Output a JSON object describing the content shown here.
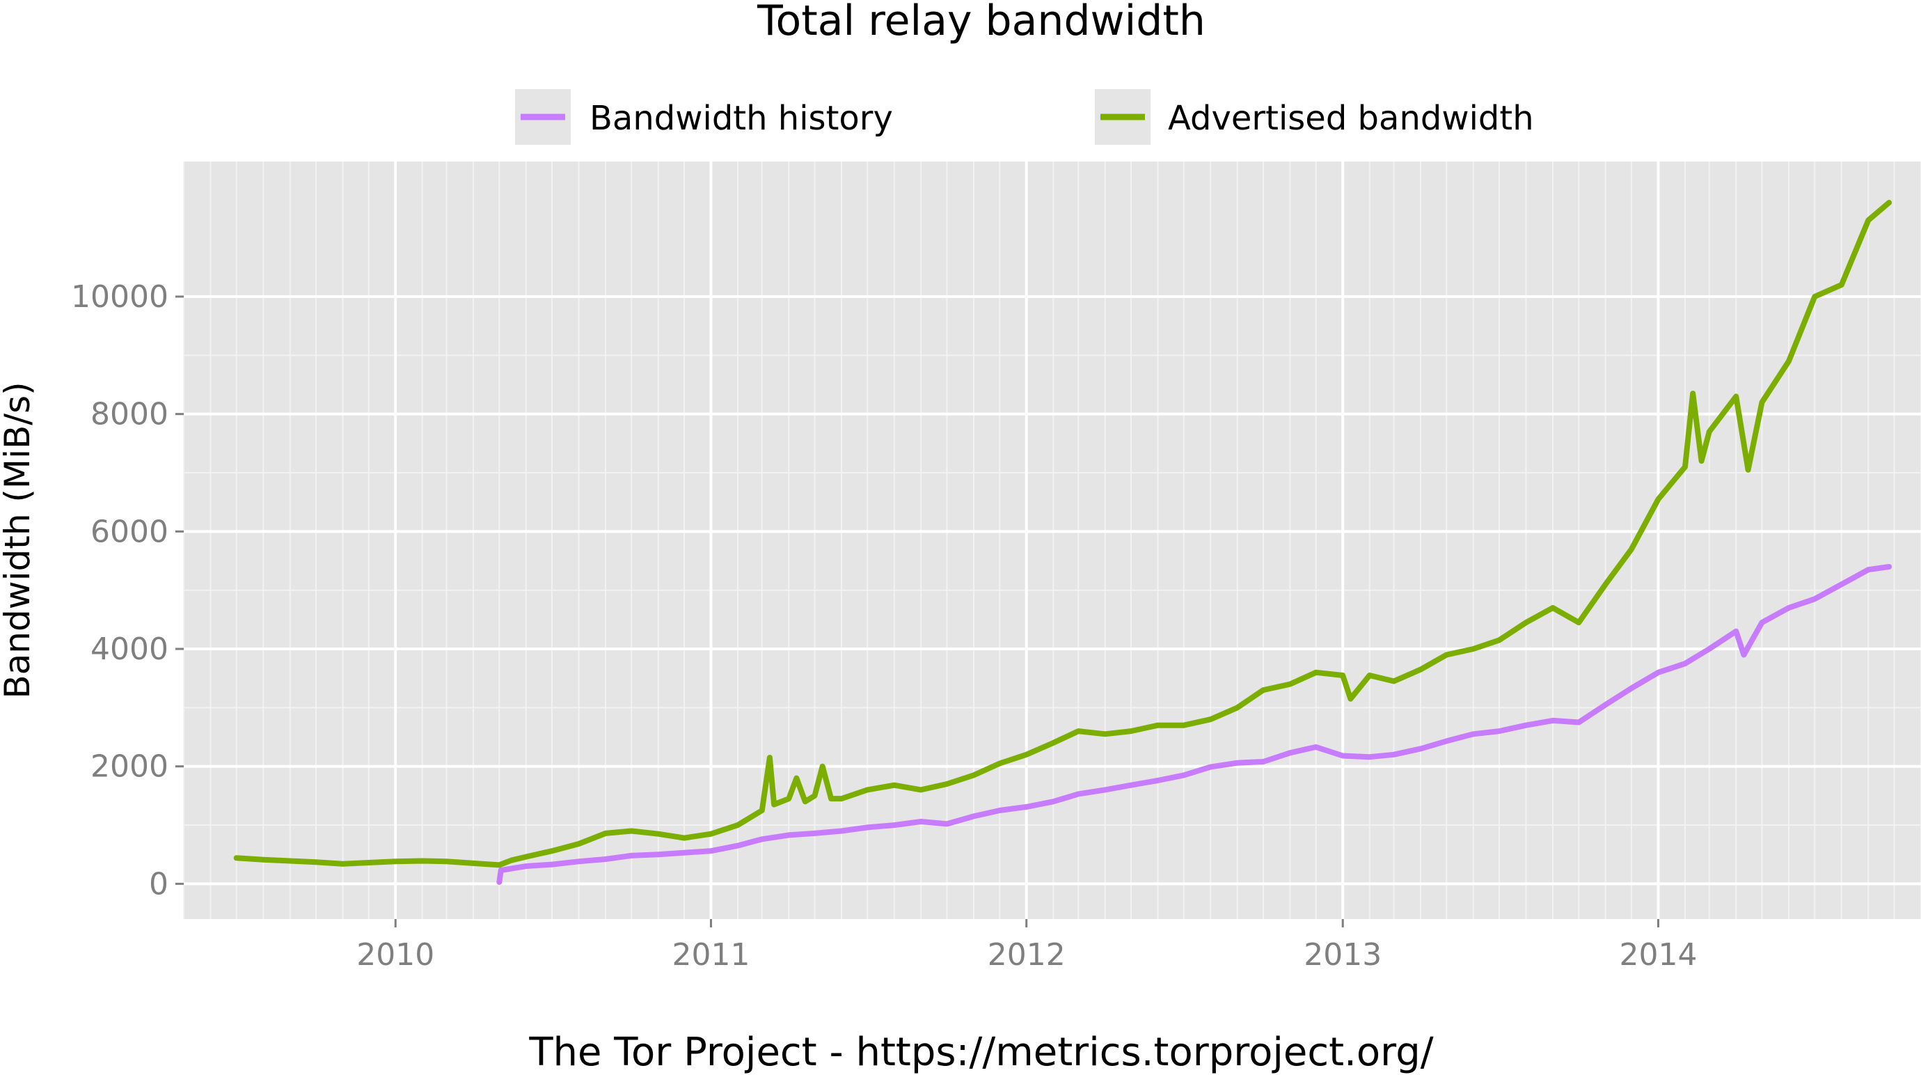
{
  "chart_data": {
    "type": "line",
    "title": "Total relay bandwidth",
    "xlabel": "",
    "ylabel": "Bandwidth (MiB/s)",
    "caption": "The Tor Project - https://metrics.torproject.org/",
    "x_ticks": [
      "2010",
      "2011",
      "2012",
      "2013",
      "2014"
    ],
    "y_ticks": [
      0,
      2000,
      4000,
      6000,
      8000,
      10000
    ],
    "y_tick_labels": [
      "0",
      "2000",
      "4000",
      "6000",
      "8000",
      "10000"
    ],
    "xlim": [
      "2009-05-01",
      "2014-11-01"
    ],
    "ylim": [
      -600,
      12300
    ],
    "grid": true,
    "legend_position": "top",
    "series": [
      {
        "name": "Bandwidth history",
        "color": "#c77cff",
        "points": [
          [
            "2010-05-01",
            30
          ],
          [
            "2010-05-03",
            230
          ],
          [
            "2010-06-01",
            300
          ],
          [
            "2010-07-01",
            330
          ],
          [
            "2010-08-01",
            380
          ],
          [
            "2010-09-01",
            420
          ],
          [
            "2010-10-01",
            480
          ],
          [
            "2010-11-01",
            500
          ],
          [
            "2010-12-01",
            530
          ],
          [
            "2011-01-01",
            560
          ],
          [
            "2011-02-01",
            650
          ],
          [
            "2011-03-01",
            760
          ],
          [
            "2011-04-01",
            830
          ],
          [
            "2011-05-01",
            860
          ],
          [
            "2011-06-01",
            900
          ],
          [
            "2011-07-01",
            960
          ],
          [
            "2011-08-01",
            1000
          ],
          [
            "2011-09-01",
            1060
          ],
          [
            "2011-10-01",
            1020
          ],
          [
            "2011-11-01",
            1150
          ],
          [
            "2011-12-01",
            1250
          ],
          [
            "2012-01-01",
            1310
          ],
          [
            "2012-02-01",
            1400
          ],
          [
            "2012-03-01",
            1530
          ],
          [
            "2012-04-01",
            1600
          ],
          [
            "2012-05-01",
            1680
          ],
          [
            "2012-06-01",
            1760
          ],
          [
            "2012-07-01",
            1850
          ],
          [
            "2012-08-01",
            1990
          ],
          [
            "2012-09-01",
            2060
          ],
          [
            "2012-10-01",
            2080
          ],
          [
            "2012-11-01",
            2230
          ],
          [
            "2012-12-01",
            2330
          ],
          [
            "2013-01-01",
            2180
          ],
          [
            "2013-02-01",
            2160
          ],
          [
            "2013-03-01",
            2200
          ],
          [
            "2013-04-01",
            2300
          ],
          [
            "2013-05-01",
            2430
          ],
          [
            "2013-06-01",
            2550
          ],
          [
            "2013-07-01",
            2600
          ],
          [
            "2013-08-01",
            2700
          ],
          [
            "2013-09-01",
            2780
          ],
          [
            "2013-10-01",
            2750
          ],
          [
            "2013-11-01",
            3050
          ],
          [
            "2013-12-01",
            3330
          ],
          [
            "2014-01-01",
            3600
          ],
          [
            "2014-02-01",
            3750
          ],
          [
            "2014-03-01",
            4000
          ],
          [
            "2014-04-01",
            4300
          ],
          [
            "2014-04-10",
            3900
          ],
          [
            "2014-05-01",
            4450
          ],
          [
            "2014-06-01",
            4700
          ],
          [
            "2014-07-01",
            4850
          ],
          [
            "2014-08-01",
            5100
          ],
          [
            "2014-09-01",
            5350
          ],
          [
            "2014-09-25",
            5400
          ]
        ]
      },
      {
        "name": "Advertised bandwidth",
        "color": "#7cae00",
        "points": [
          [
            "2009-07-01",
            440
          ],
          [
            "2009-08-01",
            410
          ],
          [
            "2009-09-01",
            390
          ],
          [
            "2009-10-01",
            370
          ],
          [
            "2009-11-01",
            340
          ],
          [
            "2009-12-01",
            360
          ],
          [
            "2010-01-01",
            380
          ],
          [
            "2010-02-01",
            390
          ],
          [
            "2010-03-01",
            380
          ],
          [
            "2010-04-01",
            350
          ],
          [
            "2010-05-01",
            320
          ],
          [
            "2010-05-15",
            400
          ],
          [
            "2010-06-01",
            460
          ],
          [
            "2010-07-01",
            560
          ],
          [
            "2010-08-01",
            680
          ],
          [
            "2010-09-01",
            860
          ],
          [
            "2010-10-01",
            900
          ],
          [
            "2010-11-01",
            850
          ],
          [
            "2010-12-01",
            780
          ],
          [
            "2011-01-01",
            850
          ],
          [
            "2011-02-01",
            1000
          ],
          [
            "2011-03-01",
            1250
          ],
          [
            "2011-03-10",
            2150
          ],
          [
            "2011-03-15",
            1350
          ],
          [
            "2011-04-01",
            1450
          ],
          [
            "2011-04-10",
            1800
          ],
          [
            "2011-04-20",
            1400
          ],
          [
            "2011-05-01",
            1500
          ],
          [
            "2011-05-10",
            2000
          ],
          [
            "2011-05-20",
            1450
          ],
          [
            "2011-06-01",
            1450
          ],
          [
            "2011-07-01",
            1600
          ],
          [
            "2011-08-01",
            1680
          ],
          [
            "2011-09-01",
            1600
          ],
          [
            "2011-10-01",
            1700
          ],
          [
            "2011-11-01",
            1850
          ],
          [
            "2011-12-01",
            2050
          ],
          [
            "2012-01-01",
            2200
          ],
          [
            "2012-02-01",
            2400
          ],
          [
            "2012-03-01",
            2600
          ],
          [
            "2012-04-01",
            2550
          ],
          [
            "2012-05-01",
            2600
          ],
          [
            "2012-06-01",
            2700
          ],
          [
            "2012-07-01",
            2700
          ],
          [
            "2012-08-01",
            2800
          ],
          [
            "2012-09-01",
            3000
          ],
          [
            "2012-10-01",
            3300
          ],
          [
            "2012-11-01",
            3400
          ],
          [
            "2012-12-01",
            3600
          ],
          [
            "2013-01-01",
            3550
          ],
          [
            "2013-01-10",
            3150
          ],
          [
            "2013-02-01",
            3550
          ],
          [
            "2013-03-01",
            3450
          ],
          [
            "2013-04-01",
            3650
          ],
          [
            "2013-05-01",
            3900
          ],
          [
            "2013-06-01",
            4000
          ],
          [
            "2013-07-01",
            4150
          ],
          [
            "2013-08-01",
            4450
          ],
          [
            "2013-09-01",
            4700
          ],
          [
            "2013-10-01",
            4450
          ],
          [
            "2013-11-01",
            5100
          ],
          [
            "2013-12-01",
            5700
          ],
          [
            "2014-01-01",
            6550
          ],
          [
            "2014-02-01",
            7100
          ],
          [
            "2014-02-10",
            8350
          ],
          [
            "2014-02-20",
            7200
          ],
          [
            "2014-03-01",
            7700
          ],
          [
            "2014-04-01",
            8300
          ],
          [
            "2014-04-15",
            7050
          ],
          [
            "2014-05-01",
            8200
          ],
          [
            "2014-06-01",
            8900
          ],
          [
            "2014-07-01",
            10000
          ],
          [
            "2014-08-01",
            10200
          ],
          [
            "2014-09-01",
            11300
          ],
          [
            "2014-09-25",
            11600
          ]
        ]
      }
    ]
  }
}
